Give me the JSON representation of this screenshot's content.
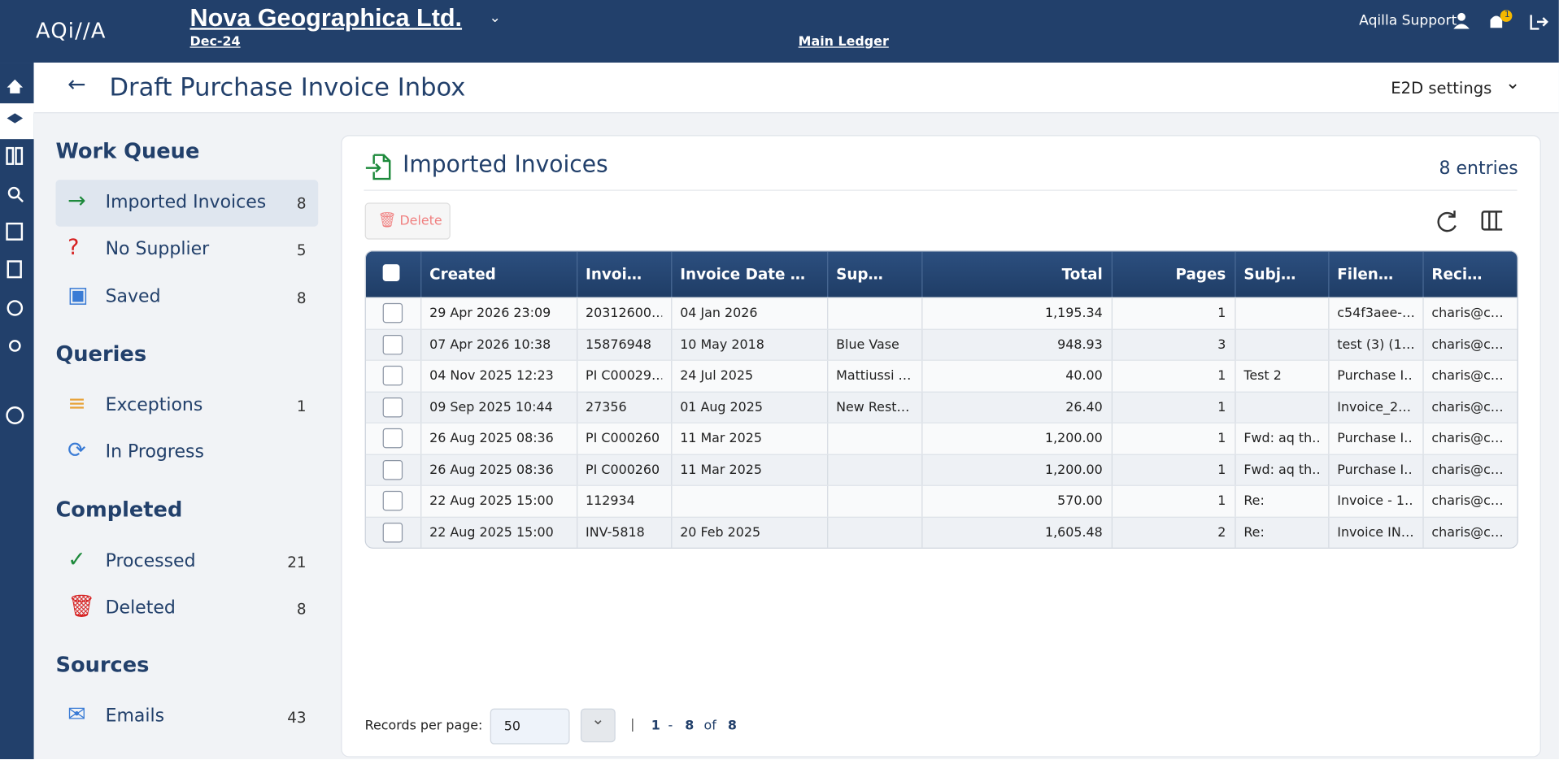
{
  "header": {
    "logo": "AQi//A",
    "company": "Nova Geographica Ltd.",
    "period": "Dec-24",
    "ledger": "Main Ledger",
    "user": "Aqilla Support",
    "notifications": "1"
  },
  "page": {
    "title": "Draft Purchase Invoice Inbox",
    "settings": "E2D settings"
  },
  "sidebar": [
    {
      "heading": "Work Queue",
      "items": [
        {
          "label": "Imported Invoices",
          "count": 8
        },
        {
          "label": "No Supplier",
          "count": 5
        },
        {
          "label": "Saved",
          "count": 8
        }
      ]
    },
    {
      "heading": "Queries",
      "items": [
        {
          "label": "Exceptions",
          "count": 1
        },
        {
          "label": "In Progress",
          "count": null
        }
      ]
    },
    {
      "heading": "Completed",
      "items": [
        {
          "label": "Processed",
          "count": 21
        },
        {
          "label": "Deleted",
          "count": 8
        }
      ]
    },
    {
      "heading": "Sources",
      "items": [
        {
          "label": "Emails",
          "count": 43
        }
      ]
    }
  ],
  "card": {
    "title": "Imported Invoices",
    "entries": "8 entries",
    "delete": "Delete"
  },
  "table": {
    "columns": [
      "Created",
      "Invoi…",
      "Invoice Date …",
      "Sup…",
      "Total",
      "Pages",
      "Subj…",
      "Filen…",
      "Reci…"
    ],
    "rows": [
      [
        "29 Apr 2026 23:09",
        "20312600…",
        "04 Jan 2026",
        "",
        "1,195.34",
        "1",
        "",
        "c54f3aee-…",
        "charis@c…"
      ],
      [
        "07 Apr 2026 10:38",
        "15876948",
        "10 May 2018",
        "Blue Vase",
        "948.93",
        "3",
        "",
        "test (3) (1…",
        "charis@c…"
      ],
      [
        "04 Nov 2025 12:23",
        "PI C00029…",
        "24 Jul 2025",
        "Mattiussi …",
        "40.00",
        "1",
        "Test 2",
        "Purchase I…",
        "charis@c…"
      ],
      [
        "09 Sep 2025 10:44",
        "27356",
        "01 Aug 2025",
        "New Rest…",
        "26.40",
        "1",
        "",
        "Invoice_2…",
        "charis@c…"
      ],
      [
        "26 Aug 2025 08:36",
        "PI C000260",
        "11 Mar 2025",
        "",
        "1,200.00",
        "1",
        "Fwd: aq th…",
        "Purchase I…",
        "charis@c…"
      ],
      [
        "26 Aug 2025 08:36",
        "PI C000260",
        "11 Mar 2025",
        "",
        "1,200.00",
        "1",
        "Fwd: aq th…",
        "Purchase I…",
        "charis@c…"
      ],
      [
        "22 Aug 2025 15:00",
        "112934",
        "",
        "",
        "570.00",
        "1",
        "Re:",
        "Invoice - 1…",
        "charis@c…"
      ],
      [
        "22 Aug 2025 15:00",
        "INV-5818",
        "20 Feb 2025",
        "",
        "1,605.48",
        "2",
        "Re:",
        "Invoice IN…",
        "charis@c…"
      ]
    ]
  },
  "pagination": {
    "label": "Records per page:",
    "per_page": "50",
    "from": "1",
    "dash": "-",
    "to": "8",
    "of": "of",
    "total": "8"
  }
}
